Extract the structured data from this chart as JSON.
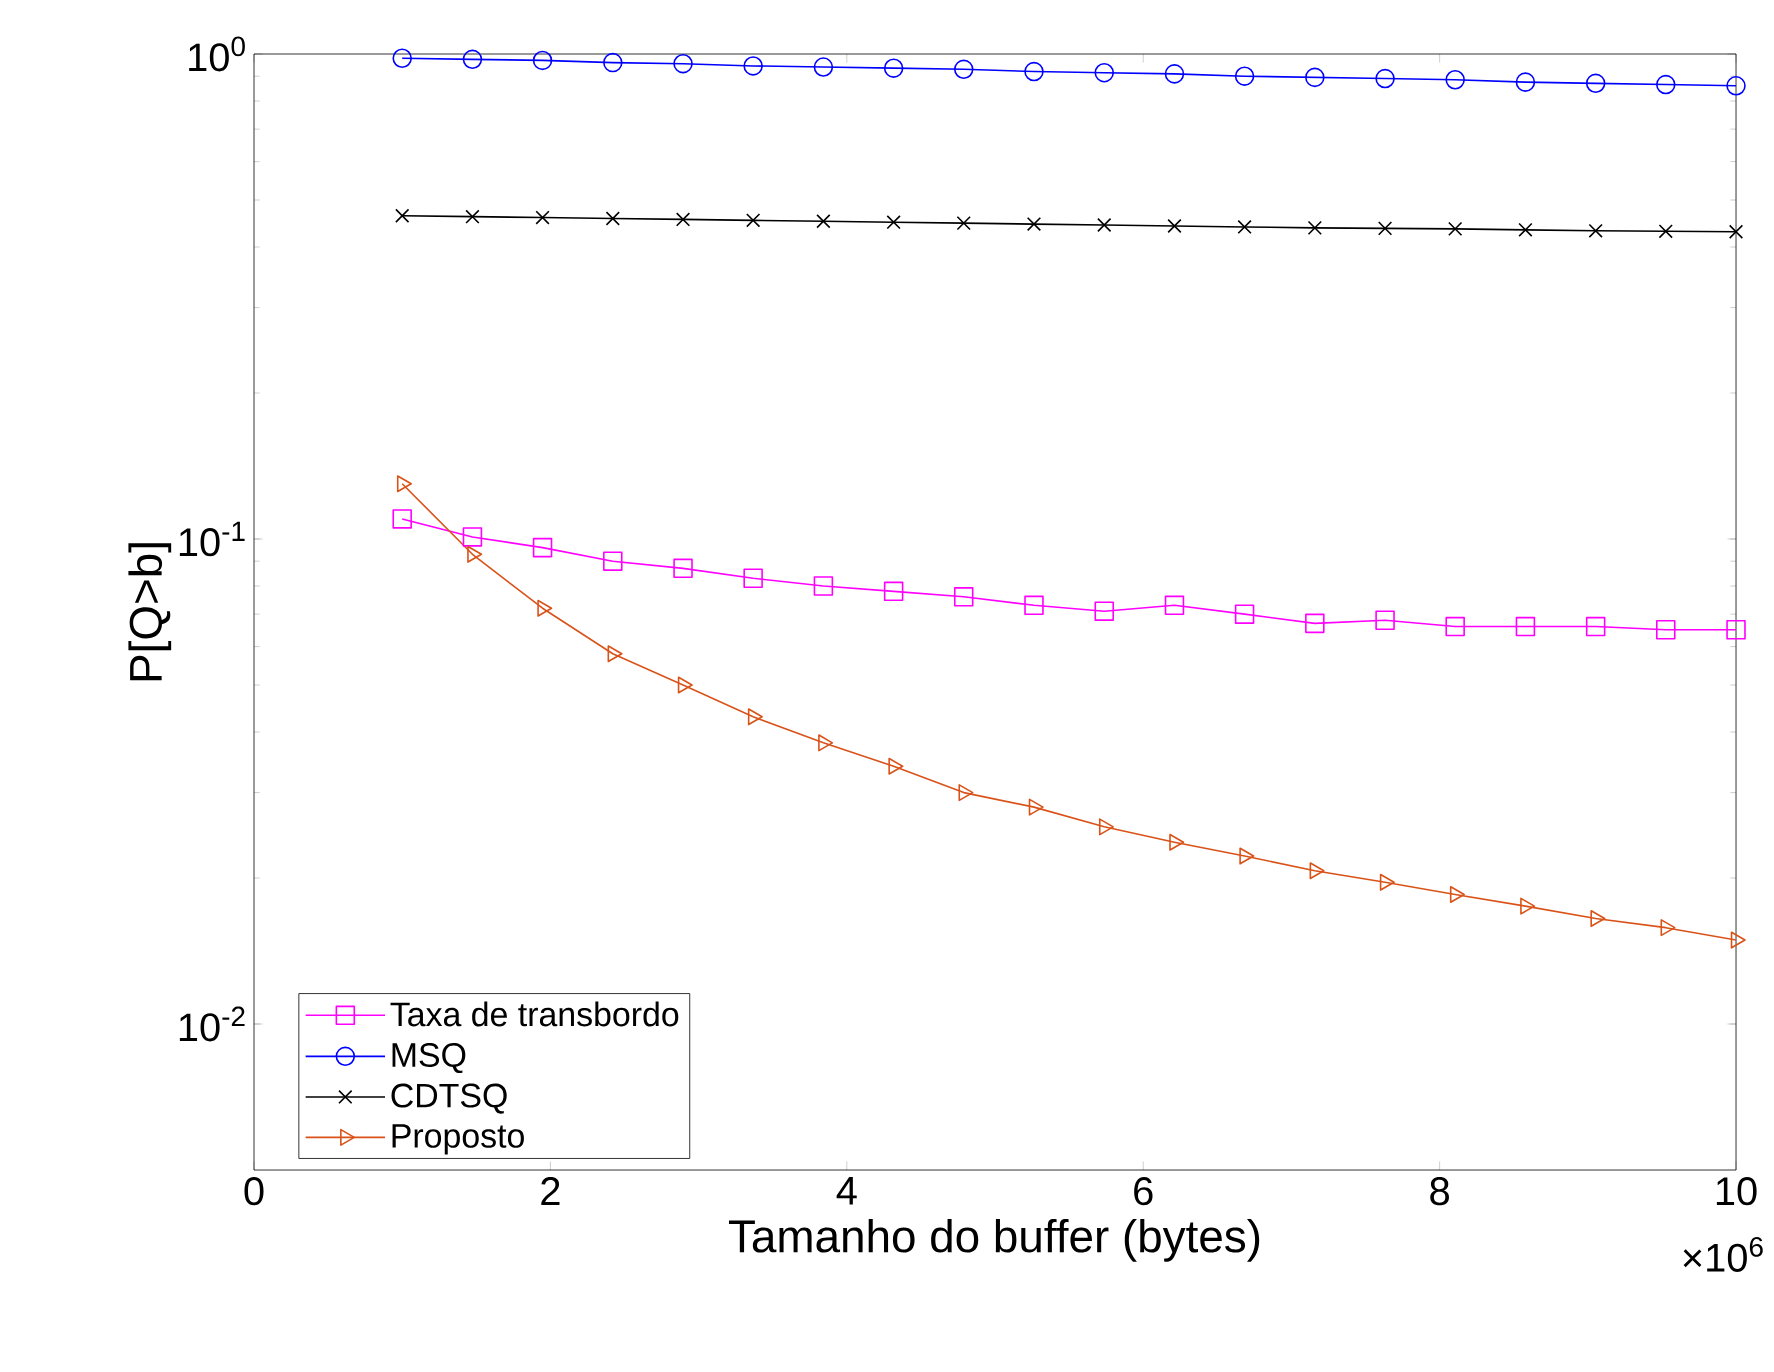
{
  "chart_data": {
    "type": "line",
    "xlabel": "Tamanho do buffer (bytes)",
    "ylabel": "P[Q>b]",
    "log": "y",
    "legend": "bottom left",
    "line_style": "solid",
    "x": [
      1.0,
      1.474,
      1.947,
      2.421,
      2.895,
      3.368,
      3.842,
      4.316,
      4.789,
      5.263,
      5.737,
      6.211,
      6.684,
      7.158,
      7.632,
      8.105,
      8.579,
      9.053,
      9.526,
      10.0
    ],
    "xlim": [
      0,
      10
    ],
    "ylim": [
      0.005,
      1
    ],
    "xticks": [
      0,
      2,
      4,
      6,
      8,
      10
    ],
    "yticks": [
      {
        "value": 0.01,
        "label": "10$^{-2}$"
      },
      {
        "value": 0.1,
        "label": "10$^{-1}$"
      },
      {
        "value": 1,
        "label": "10$^{0}$"
      }
    ],
    "annotations": [
      "×10$^{6}$"
    ],
    "series": [
      {
        "name": "Taxa de transbordo",
        "color": "#ff00ff",
        "marker": "square",
        "values": [
          0.11,
          0.101,
          0.096,
          0.09,
          0.087,
          0.083,
          0.08,
          0.078,
          0.076,
          0.073,
          0.071,
          0.073,
          0.07,
          0.067,
          0.068,
          0.066,
          0.066,
          0.066,
          0.065,
          0.065
        ]
      },
      {
        "name": "MSQ",
        "color": "#0000ff",
        "marker": "circle",
        "values": [
          0.98,
          0.975,
          0.97,
          0.96,
          0.955,
          0.945,
          0.94,
          0.935,
          0.93,
          0.92,
          0.915,
          0.91,
          0.9,
          0.895,
          0.89,
          0.885,
          0.875,
          0.87,
          0.865,
          0.86
        ]
      },
      {
        "name": "CDTSQ",
        "color": "#000000",
        "marker": "cross",
        "values": [
          0.464,
          0.462,
          0.46,
          0.458,
          0.456,
          0.454,
          0.452,
          0.45,
          0.448,
          0.446,
          0.444,
          0.442,
          0.44,
          0.438,
          0.437,
          0.436,
          0.434,
          0.432,
          0.431,
          0.43
        ]
      },
      {
        "name": "Proposto",
        "color": "#d95319",
        "marker": "triangle",
        "values": [
          0.13,
          0.093,
          0.072,
          0.058,
          0.05,
          0.043,
          0.038,
          0.034,
          0.03,
          0.028,
          0.0255,
          0.0237,
          0.0222,
          0.0207,
          0.0196,
          0.0185,
          0.0175,
          0.0165,
          0.0158,
          0.0149
        ]
      }
    ]
  }
}
